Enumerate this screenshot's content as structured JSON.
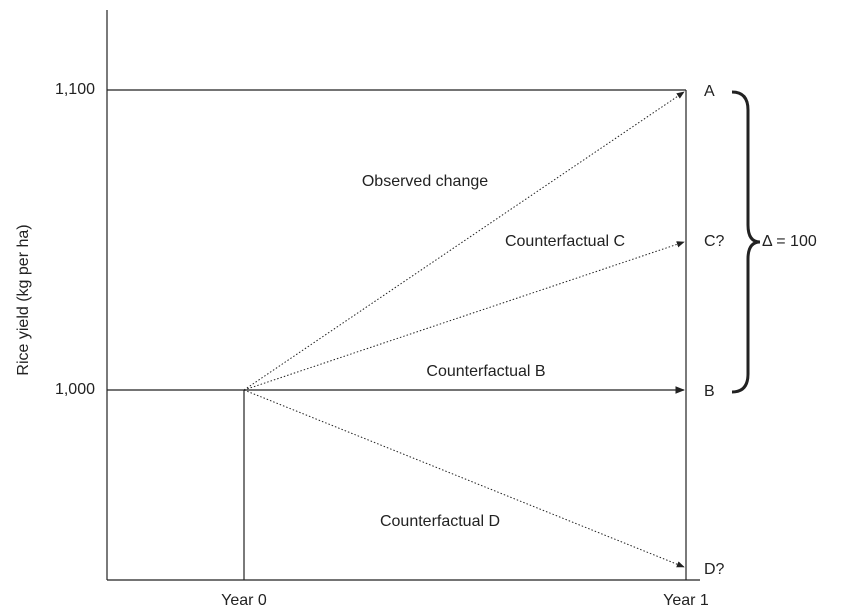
{
  "y_axis": {
    "label": "Rice yield (kg per ha)",
    "ticks": [
      "1,100",
      "1,000"
    ]
  },
  "x_axis": {
    "ticks": [
      "Year 0",
      "Year 1"
    ]
  },
  "points": [
    "A",
    "C?",
    "B",
    "D?"
  ],
  "paths": [
    "Observed change",
    "Counterfactual C",
    "Counterfactual B",
    "Counterfactual D"
  ],
  "brace_label": "Δ = 100"
}
